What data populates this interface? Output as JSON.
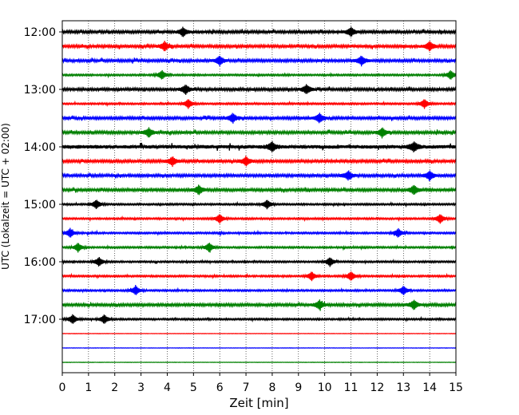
{
  "chart_data": {
    "type": "line",
    "title": "",
    "xlabel": "Zeit  [min]",
    "ylabel": "UTC (Lokalzeit = UTC + 02:00)",
    "xlim": [
      0,
      15
    ],
    "x_ticks": [
      0,
      1,
      2,
      3,
      4,
      5,
      6,
      7,
      8,
      9,
      10,
      11,
      12,
      13,
      14,
      15
    ],
    "x_tick_labels": [
      "0",
      "1",
      "2",
      "3",
      "4",
      "5",
      "6",
      "7",
      "8",
      "9",
      "10",
      "11",
      "12",
      "13",
      "14",
      "15"
    ],
    "y_tick_labels": [
      "12:00",
      "13:00",
      "14:00",
      "15:00",
      "16:00",
      "17:00"
    ],
    "grid": "vertical-dotted",
    "trace_colors": [
      "#000000",
      "#ff0000",
      "#0000ff",
      "#008000"
    ],
    "traces": [
      {
        "start": "12:00",
        "color": "#000000",
        "amplitude": "medium",
        "events": [
          11.0,
          4.6
        ]
      },
      {
        "start": "12:15",
        "color": "#ff0000",
        "amplitude": "medium",
        "events": [
          3.9,
          14.0
        ]
      },
      {
        "start": "12:30",
        "color": "#0000ff",
        "amplitude": "medium",
        "events": [
          11.4,
          6.0
        ]
      },
      {
        "start": "12:45",
        "color": "#008000",
        "amplitude": "small",
        "events": [
          3.8,
          14.8
        ]
      },
      {
        "start": "13:00",
        "color": "#000000",
        "amplitude": "medium",
        "events": [
          4.7,
          9.3
        ]
      },
      {
        "start": "13:15",
        "color": "#ff0000",
        "amplitude": "small",
        "events": [
          4.8,
          13.8
        ]
      },
      {
        "start": "13:30",
        "color": "#0000ff",
        "amplitude": "medium",
        "events": [
          6.5,
          9.8
        ]
      },
      {
        "start": "13:45",
        "color": "#008000",
        "amplitude": "medium",
        "events": [
          3.3,
          12.2
        ]
      },
      {
        "start": "14:00",
        "color": "#000000",
        "amplitude": "large",
        "events": [
          13.4,
          8.0
        ]
      },
      {
        "start": "14:15",
        "color": "#ff0000",
        "amplitude": "medium",
        "events": [
          4.2,
          7.0
        ]
      },
      {
        "start": "14:30",
        "color": "#0000ff",
        "amplitude": "medium",
        "events": [
          14.0,
          10.9
        ]
      },
      {
        "start": "14:45",
        "color": "#008000",
        "amplitude": "medium",
        "events": [
          5.2,
          13.4
        ]
      },
      {
        "start": "15:00",
        "color": "#000000",
        "amplitude": "small",
        "events": [
          7.8,
          1.3
        ]
      },
      {
        "start": "15:15",
        "color": "#ff0000",
        "amplitude": "small",
        "events": [
          6.0,
          14.4
        ]
      },
      {
        "start": "15:30",
        "color": "#0000ff",
        "amplitude": "small",
        "events": [
          12.8,
          0.3
        ]
      },
      {
        "start": "15:45",
        "color": "#008000",
        "amplitude": "small",
        "events": [
          5.6,
          0.6
        ]
      },
      {
        "start": "16:00",
        "color": "#000000",
        "amplitude": "small",
        "events": [
          10.2,
          1.4
        ]
      },
      {
        "start": "16:15",
        "color": "#ff0000",
        "amplitude": "small",
        "events": [
          9.5,
          11.0
        ]
      },
      {
        "start": "16:30",
        "color": "#0000ff",
        "amplitude": "small",
        "events": [
          2.8,
          13.0
        ]
      },
      {
        "start": "16:45",
        "color": "#008000",
        "amplitude": "medium",
        "events": [
          9.8,
          13.4
        ]
      },
      {
        "start": "17:00",
        "color": "#000000",
        "amplitude": "small",
        "events": [
          0.4,
          1.6
        ]
      },
      {
        "start": "17:15",
        "color": "#ff0000",
        "amplitude": "flat",
        "events": []
      },
      {
        "start": "17:30",
        "color": "#0000ff",
        "amplitude": "flat",
        "events": []
      },
      {
        "start": "17:45",
        "color": "#008000",
        "amplitude": "flat",
        "events": []
      }
    ]
  }
}
